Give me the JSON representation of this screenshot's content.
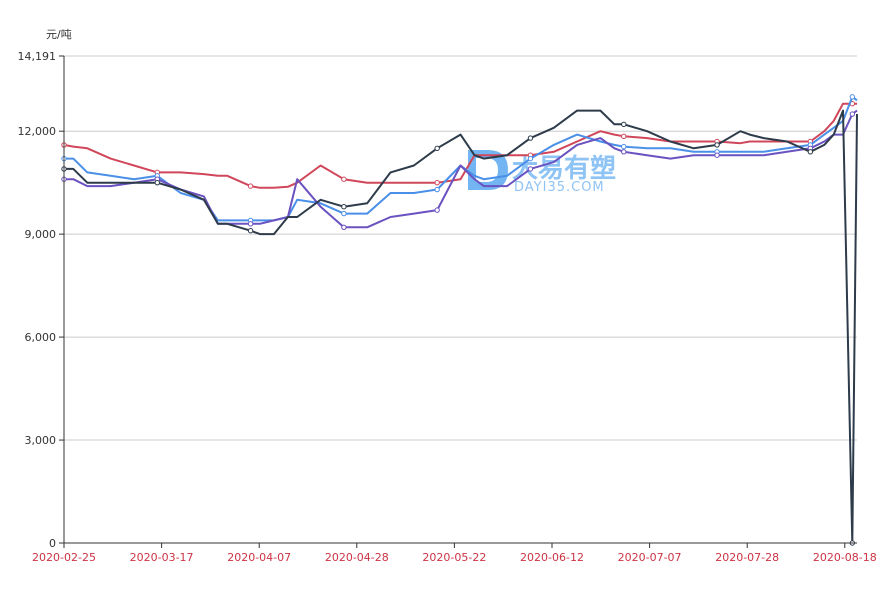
{
  "chart_data": {
    "type": "line",
    "y_unit_label": "元/吨",
    "ylim": [
      0,
      14191
    ],
    "y_ticks": [
      "0",
      "3,000",
      "6,000",
      "9,000",
      "12,000",
      "14,191"
    ],
    "y_tick_values": [
      0,
      3000,
      6000,
      9000,
      12000,
      14191
    ],
    "x_tick_labels": [
      "2020-02-25",
      "2020-03-17",
      "2020-04-07",
      "2020-04-28",
      "2020-05-22",
      "2020-06-12",
      "2020-07-07",
      "2020-07-28",
      "2020-08-18"
    ],
    "grid": true,
    "colors": {
      "red": "#d0465a",
      "blue": "#4a8fe8",
      "purple": "#6a52c0",
      "dark": "#2d3b4a",
      "axis": "#333333",
      "grid": "#cccccc",
      "xlabel": "#cc3344"
    },
    "x": [
      0,
      2,
      5,
      10,
      15,
      20,
      25,
      30,
      33,
      35,
      40,
      42,
      45,
      48,
      50,
      55,
      60,
      65,
      70,
      75,
      80,
      85,
      88,
      90,
      95,
      100,
      105,
      110,
      115,
      118,
      120,
      125,
      130,
      135,
      140,
      145,
      147,
      150,
      155,
      160,
      163,
      165,
      167,
      169,
      170
    ],
    "series": [
      {
        "color": "#d0465a",
        "values": [
          11600,
          11550,
          11500,
          11200,
          11000,
          10800,
          10800,
          10750,
          10700,
          10700,
          10400,
          10350,
          10350,
          10380,
          10500,
          11000,
          10600,
          10500,
          10500,
          10500,
          10500,
          10600,
          11300,
          11300,
          11300,
          11300,
          11400,
          11700,
          12000,
          11900,
          11850,
          11800,
          11700,
          11700,
          11700,
          11650,
          11700,
          11700,
          11700,
          11700,
          12000,
          12300,
          12800,
          12800,
          12800
        ]
      },
      {
        "color": "#4a8fe8",
        "values": [
          11200,
          11200,
          10800,
          10700,
          10600,
          10700,
          10200,
          10000,
          9400,
          9400,
          9400,
          9400,
          9400,
          9500,
          10000,
          9900,
          9600,
          9600,
          10200,
          10200,
          10300,
          11000,
          10700,
          10600,
          10700,
          11200,
          11600,
          11900,
          11700,
          11600,
          11550,
          11500,
          11500,
          11400,
          11400,
          11400,
          11400,
          11400,
          11500,
          11600,
          11900,
          12100,
          12300,
          13000,
          12900
        ]
      },
      {
        "color": "#6a52c0",
        "values": [
          10600,
          10600,
          10400,
          10400,
          10500,
          10600,
          10300,
          10100,
          9300,
          9300,
          9300,
          9300,
          9400,
          9500,
          10600,
          9800,
          9200,
          9200,
          9500,
          9600,
          9700,
          11000,
          10600,
          10400,
          10400,
          10900,
          11100,
          11600,
          11800,
          11500,
          11400,
          11300,
          11200,
          11300,
          11300,
          11300,
          11300,
          11300,
          11400,
          11500,
          11700,
          11900,
          11900,
          12500,
          12600
        ]
      },
      {
        "color": "#2d3b4a",
        "values": [
          10900,
          10900,
          10500,
          10500,
          10500,
          10500,
          10300,
          10000,
          9300,
          9300,
          9100,
          9000,
          9000,
          9500,
          9500,
          10000,
          9800,
          9900,
          10800,
          11000,
          11500,
          11900,
          11300,
          11200,
          11300,
          11800,
          12100,
          12600,
          12600,
          12200,
          12200,
          12000,
          11700,
          11500,
          11600,
          12000,
          11900,
          11800,
          11700,
          11400,
          11600,
          11900,
          12600,
          0,
          12500
        ]
      }
    ]
  },
  "watermark": {
    "cn": "大易有塑",
    "en": "DAYI35.COM"
  }
}
